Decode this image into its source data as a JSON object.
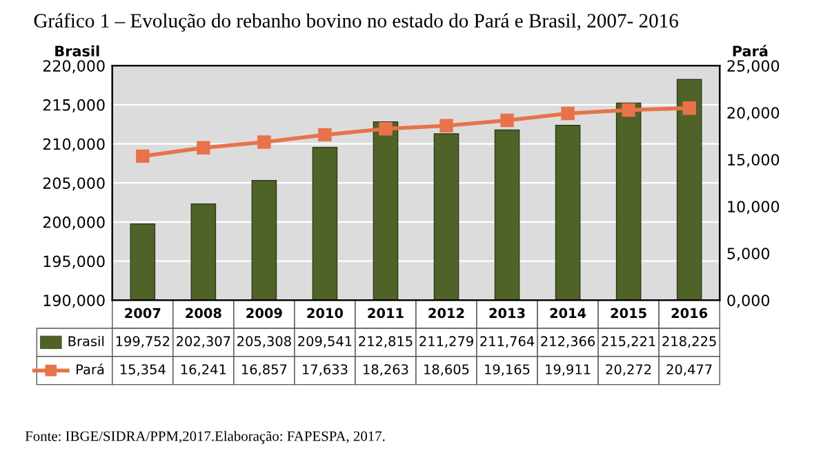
{
  "chart_data": {
    "type": "bar",
    "title": "Gráfico 1 – Evolução do rebanho bovino no estado do Pará e Brasil, 2007- 2016",
    "ylabel": "Brasil",
    "y2label": "Pará",
    "categories": [
      "2007",
      "2008",
      "2009",
      "2010",
      "2011",
      "2012",
      "2013",
      "2014",
      "2015",
      "2016"
    ],
    "series": [
      {
        "name": "Brasil",
        "color": "#4f6228",
        "values": [
          199752,
          202307,
          205308,
          209541,
          212815,
          211279,
          211764,
          212366,
          215221,
          218225
        ],
        "value_labels": [
          "199,752",
          "202,307",
          "205,308",
          "209,541",
          "212,815",
          "211,279",
          "211,764",
          "212,366",
          "215,221",
          "218,225"
        ]
      },
      {
        "name": "Pará",
        "type": "line",
        "axis": "y2",
        "color": "#e8734a",
        "marker": "square",
        "values": [
          15354,
          16241,
          16857,
          17633,
          18263,
          18605,
          19165,
          19911,
          20272,
          20477
        ],
        "value_labels": [
          "15,354",
          "16,241",
          "16,857",
          "17,633",
          "18,263",
          "18,605",
          "19,165",
          "19,911",
          "20,272",
          "20,477"
        ]
      }
    ],
    "ylim": [
      190000,
      220000
    ],
    "yticks": [
      {
        "value": 190000,
        "label": "190,000"
      },
      {
        "value": 195000,
        "label": "195,000"
      },
      {
        "value": 200000,
        "label": "200,000"
      },
      {
        "value": 205000,
        "label": "205,000"
      },
      {
        "value": 210000,
        "label": "210,000"
      },
      {
        "value": 215000,
        "label": "215,000"
      },
      {
        "value": 220000,
        "label": "220,000"
      }
    ],
    "y2lim": [
      0,
      25000
    ],
    "y2ticks": [
      {
        "value": 0,
        "label": "0,000"
      },
      {
        "value": 5000,
        "label": "5,000"
      },
      {
        "value": 10000,
        "label": "10,000"
      },
      {
        "value": 15000,
        "label": "15,000"
      },
      {
        "value": 20000,
        "label": "20,000"
      },
      {
        "value": 25000,
        "label": "25,000"
      }
    ],
    "grid": "y",
    "legend": "bottom",
    "annotations": [
      "Fonte: IBGE/SIDRA/PPM,2017.Elaboração: FAPESPA, 2017."
    ]
  }
}
